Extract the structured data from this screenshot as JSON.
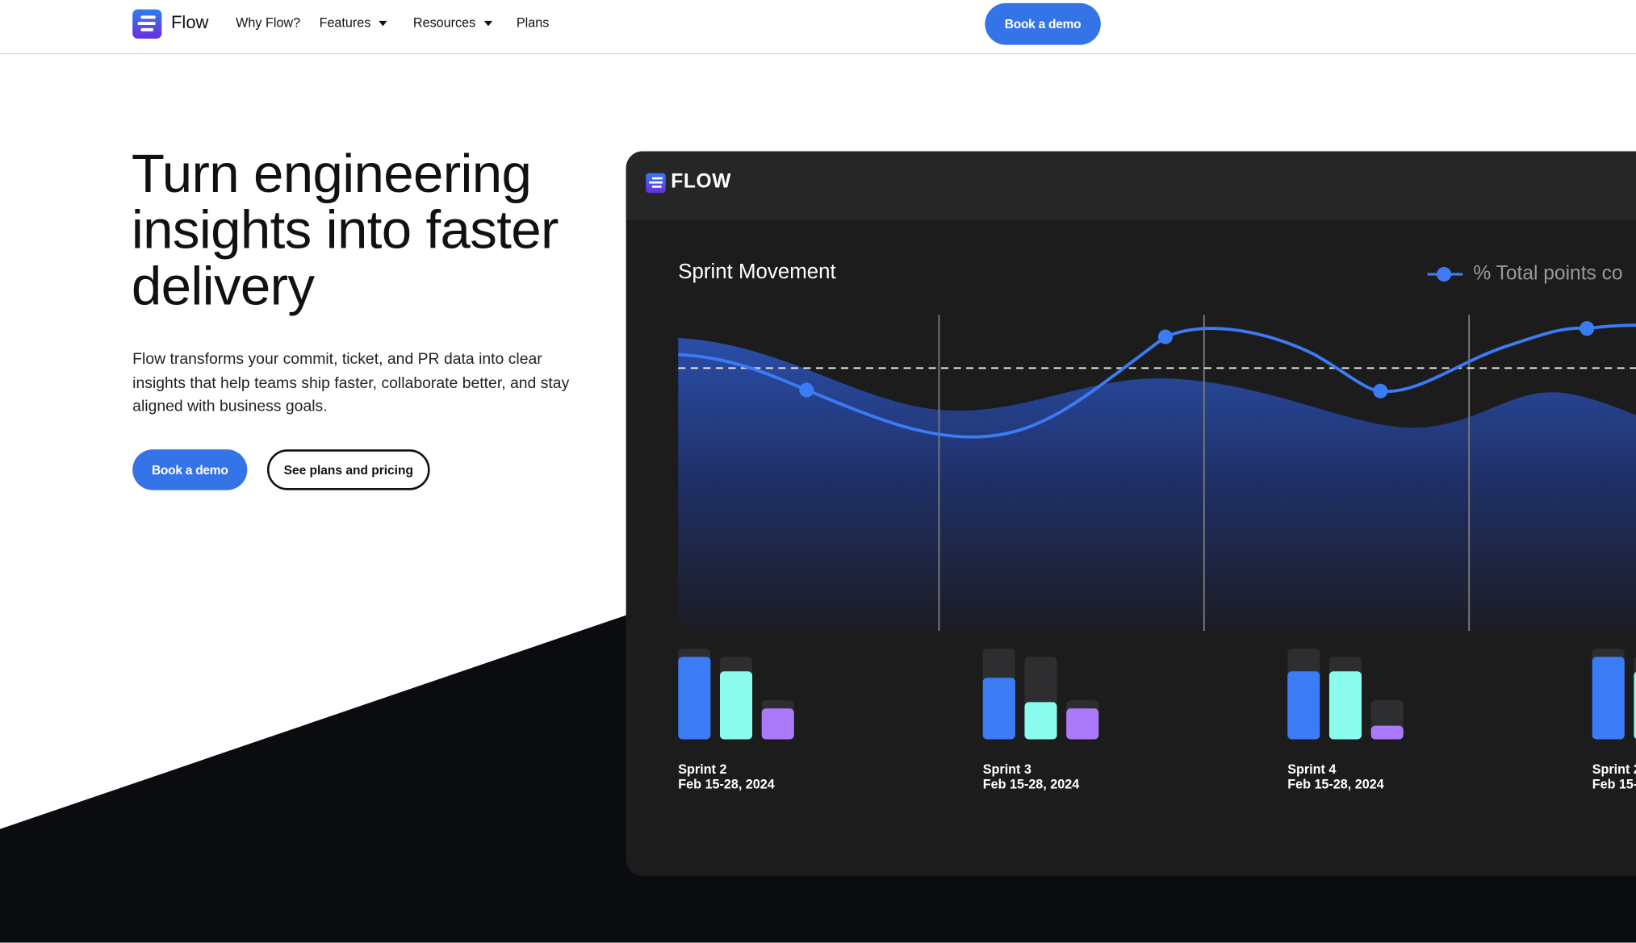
{
  "nav": {
    "brand": "Flow",
    "links": [
      {
        "label": "Why Flow?",
        "dropdown": false
      },
      {
        "label": "Features",
        "dropdown": true
      },
      {
        "label": "Resources",
        "dropdown": true
      },
      {
        "label": "Plans",
        "dropdown": false
      }
    ],
    "cta": "Book a demo"
  },
  "hero": {
    "title": "Turn engineering insights into faster delivery",
    "description": "Flow transforms your commit, ticket, and PR data into clear insights that help teams ship faster, collaborate better, and stay aligned with business goals.",
    "primary_button": "Book a demo",
    "secondary_button": "See plans and pricing"
  },
  "panel": {
    "brand": "FLOW",
    "chart_title": "Sprint Movement",
    "legend": "% Total points co"
  },
  "colors": {
    "accent": "#3474e6",
    "line": "#3b7bf5",
    "teal": "#8cfcee",
    "purple": "#a97bfb",
    "panel": "#1c1c1c",
    "dark": "#0b0c10"
  },
  "chart_data": {
    "type": "bar",
    "categories": [
      "Sprint 2",
      "Sprint 3",
      "Sprint 4",
      "Sprint 2"
    ],
    "dates": [
      "Feb 15-28, 2024",
      "Feb 15-28, 2024",
      "Feb 15-28, 2024",
      "Feb 15-"
    ],
    "series": [
      {
        "color": "#3b7bf5",
        "values": [
          91,
          68,
          75,
          91
        ],
        "targets": [
          100,
          100,
          100,
          100
        ]
      },
      {
        "color": "#8cfcee",
        "values": [
          75,
          41,
          75,
          75
        ],
        "targets": [
          91,
          91,
          91,
          91
        ]
      },
      {
        "color": "#a97bfb",
        "values": [
          34,
          34,
          15,
          null
        ],
        "targets": [
          43,
          43,
          43,
          null
        ]
      }
    ]
  }
}
